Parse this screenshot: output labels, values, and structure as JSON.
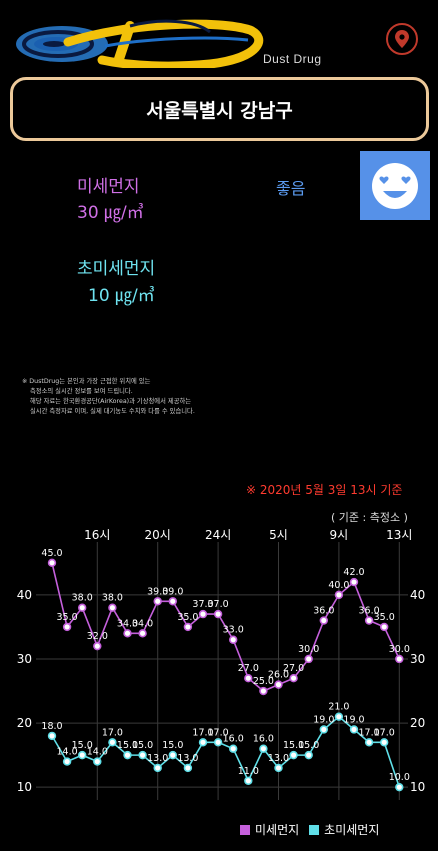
{
  "app": {
    "brand": "Dust Drug"
  },
  "location": {
    "region": "서울특별시 강남구"
  },
  "pm10": {
    "label": "미세먼지",
    "value": "30 ㎍/㎥",
    "grade": "좋음"
  },
  "pm25": {
    "label": "초미세먼지",
    "value": "10 ㎍/㎥"
  },
  "notice": [
    "※ DustDrug는 본인과 가장 근접한 위치에 있는",
    "측정소의 실시간 정보를 보여 드립니다.",
    "해당 자료는 한국환경공단(AirKorea)과 기상청에서 제공하는",
    "실시간 측정자료 이며, 실제 대기농도 수치와 다를 수 있습니다."
  ],
  "basis_time": "※ 2020년 5월 3일 13시 기준",
  "basis_station": "( 기준 : 측정소 )",
  "colors": {
    "pm10": "#c560dc",
    "pm25": "#5fdfe8",
    "border": "#ecc99a",
    "alert": "#ff3b2f",
    "grade": "#5b9bf0"
  },
  "icons": {
    "location": "location-pin-icon",
    "grade": "smiling-heart-eyes-face-icon",
    "logo": "swirl-logo"
  },
  "chart_data": {
    "type": "line",
    "x_tick_labels": [
      "16시",
      "20시",
      "24시",
      "5시",
      "9시",
      "13시"
    ],
    "y_ticks": [
      10,
      20,
      30,
      40
    ],
    "ylim": [
      8,
      47
    ],
    "series": [
      {
        "name": "미세먼지",
        "color": "#c560dc",
        "values": [
          45,
          35,
          38,
          32,
          38,
          34,
          34,
          39,
          39,
          35,
          37,
          37,
          33,
          27,
          25,
          26,
          27,
          30,
          36,
          40,
          42,
          36,
          35,
          30
        ]
      },
      {
        "name": "초미세먼지",
        "color": "#5fdfe8",
        "values": [
          18,
          14,
          15,
          14,
          17,
          15,
          15,
          13,
          15,
          13,
          17,
          17,
          16,
          11,
          16,
          13,
          15,
          15,
          19,
          21,
          19,
          17,
          17,
          10
        ]
      }
    ]
  }
}
